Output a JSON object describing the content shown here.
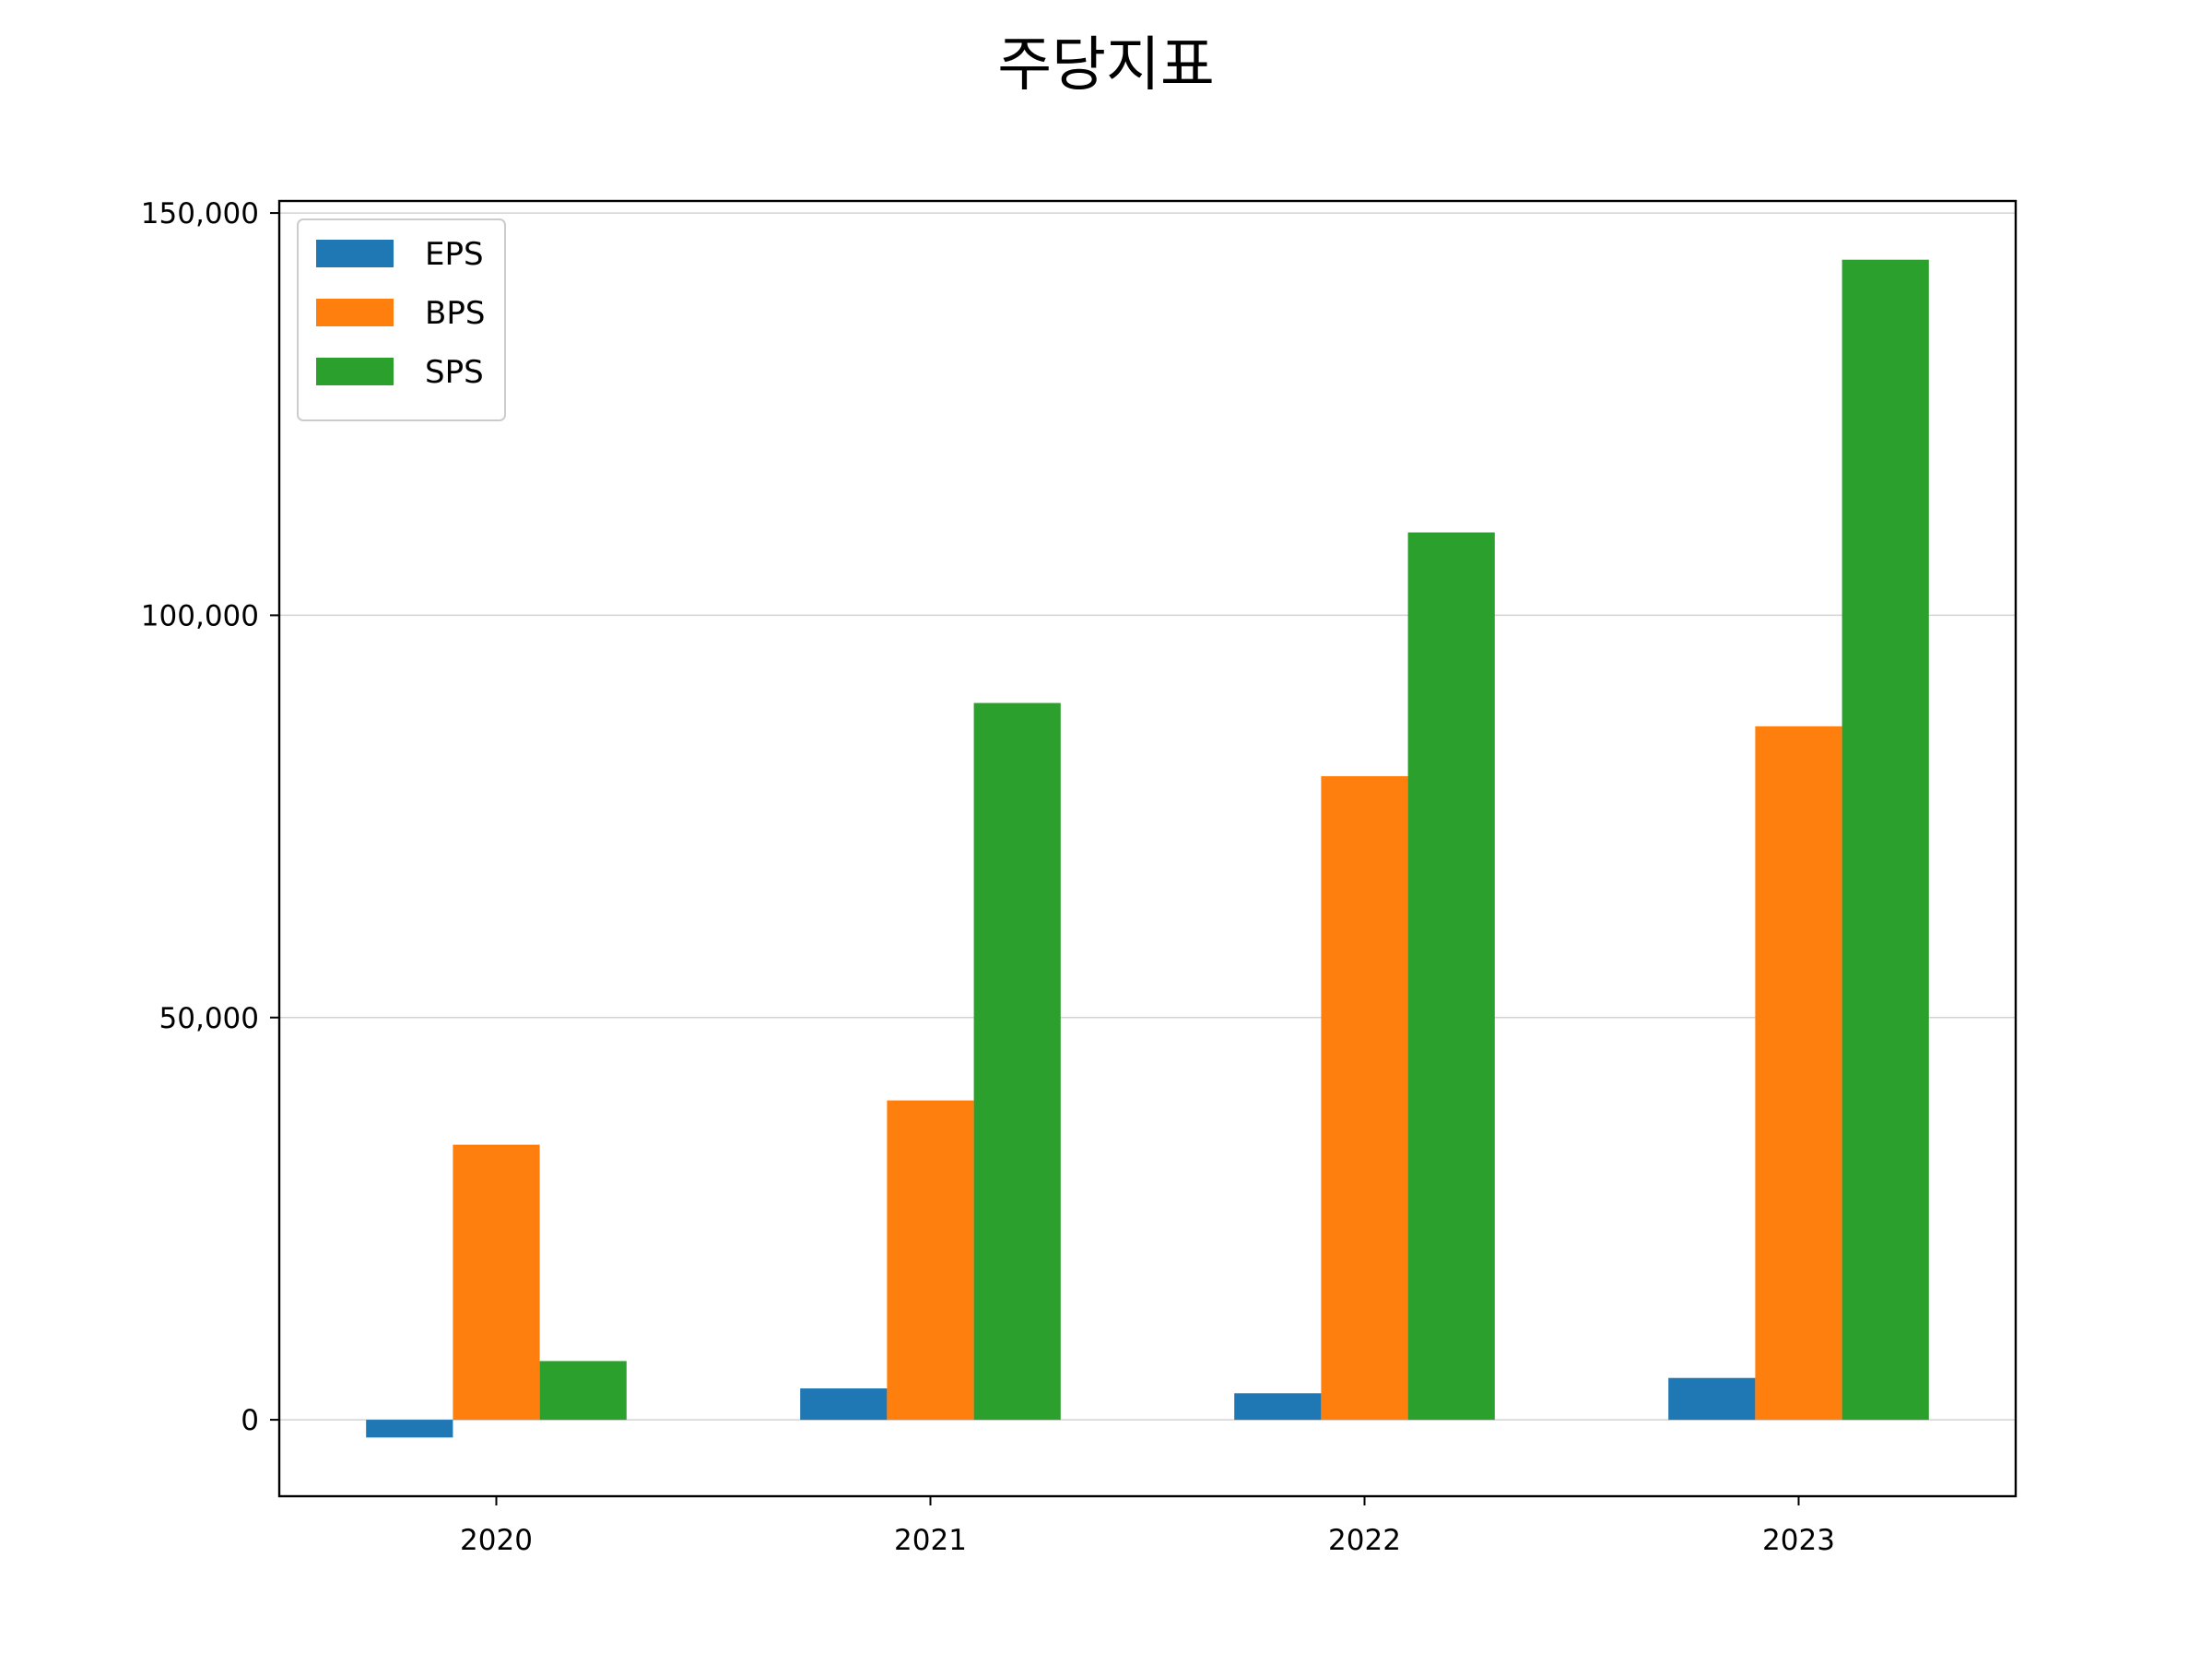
{
  "chart_data": {
    "type": "bar",
    "title": "주당지표",
    "xlabel": "",
    "ylabel": "",
    "categories": [
      "2020",
      "2021",
      "2022",
      "2023"
    ],
    "series": [
      {
        "name": "EPS",
        "color": "#1f77b4",
        "values": [
          -2200,
          3900,
          3300,
          5200
        ]
      },
      {
        "name": "BPS",
        "color": "#ff7f0e",
        "values": [
          34200,
          39700,
          80000,
          86200
        ]
      },
      {
        "name": "SPS",
        "color": "#2ca02c",
        "values": [
          7300,
          89100,
          110300,
          144200
        ]
      }
    ],
    "ylim": [
      -9500,
      151500
    ],
    "yticks": [
      0,
      50000,
      100000,
      150000
    ],
    "ytick_labels": [
      "0",
      "50,000",
      "100,000",
      "150,000"
    ],
    "grid": "y",
    "legend_position": "upper left"
  }
}
